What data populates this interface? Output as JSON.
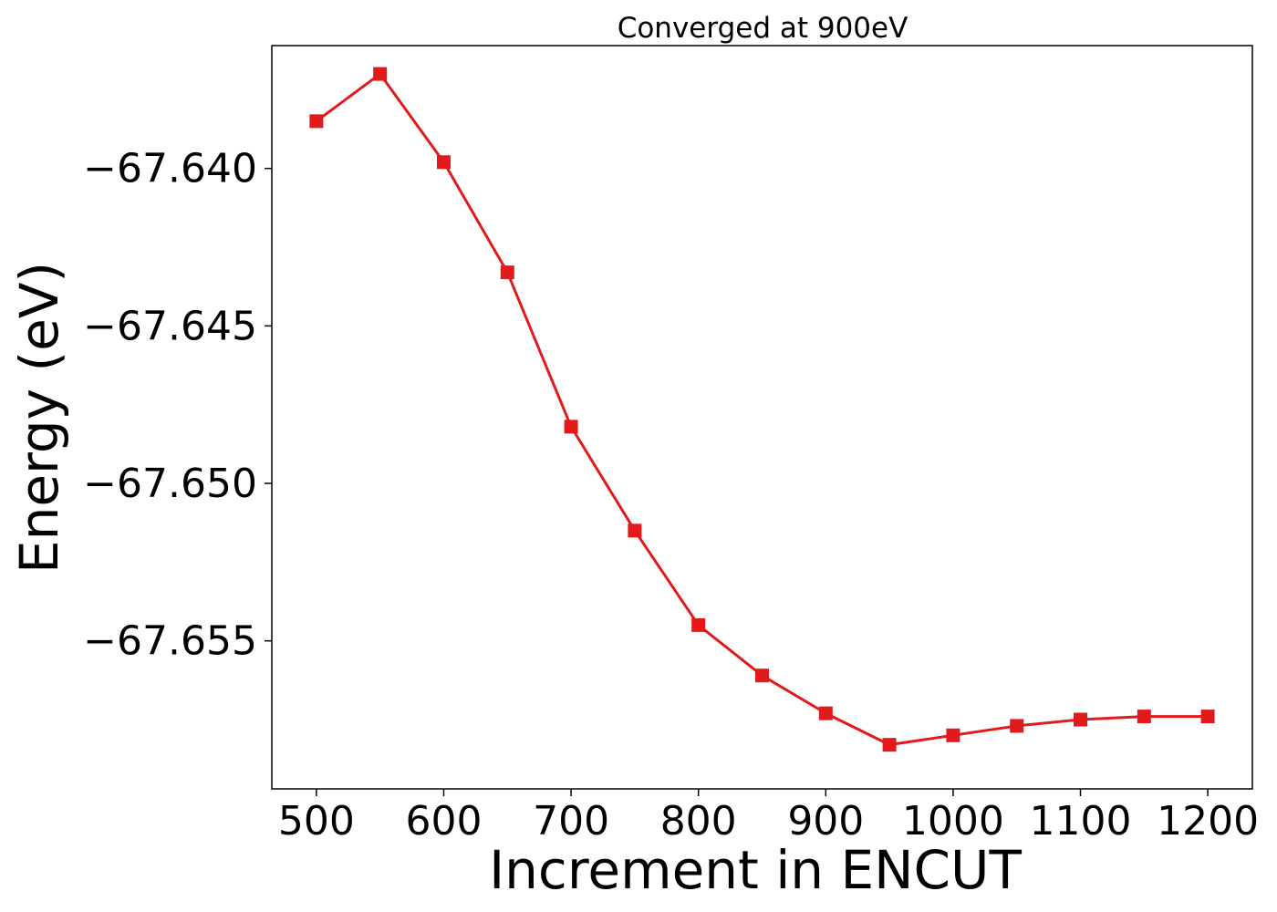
{
  "chart_data": {
    "type": "line",
    "title": "Converged at 900eV",
    "xlabel": "Increment in ENCUT",
    "ylabel": "Energy (eV)",
    "xlim": [
      465,
      1235
    ],
    "ylim": [
      -67.6597,
      -67.6361
    ],
    "x_ticks": [
      500,
      600,
      700,
      800,
      900,
      1000,
      1100,
      1200
    ],
    "y_ticks": [
      -67.64,
      -67.645,
      -67.65,
      -67.655
    ],
    "x_tick_labels": [
      "500",
      "600",
      "700",
      "800",
      "900",
      "1000",
      "1100",
      "1200"
    ],
    "y_tick_labels": [
      "−67.640",
      "−67.645",
      "−67.650",
      "−67.655"
    ],
    "grid": false,
    "series": [
      {
        "color": "#e31a1c",
        "marker": "square",
        "x": [
          500,
          550,
          600,
          650,
          700,
          750,
          800,
          850,
          900,
          950,
          1000,
          1050,
          1100,
          1150,
          1200
        ],
        "y": [
          -67.6385,
          -67.637,
          -67.6398,
          -67.6433,
          -67.6482,
          -67.6515,
          -67.6545,
          -67.6561,
          -67.6573,
          -67.6583,
          -67.658,
          -67.6577,
          -67.6575,
          -67.6574,
          -67.6574
        ]
      }
    ]
  }
}
